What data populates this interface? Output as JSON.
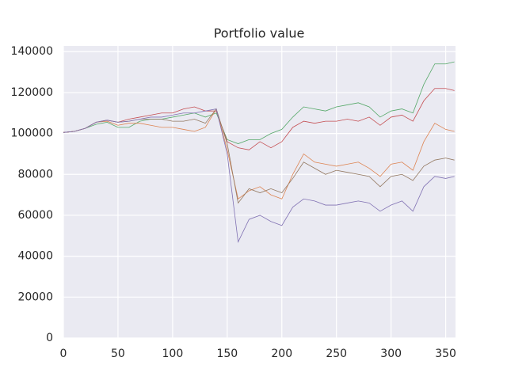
{
  "chart_data": {
    "type": "line",
    "title": "Portfolio value",
    "x": [
      0,
      10,
      20,
      30,
      40,
      50,
      60,
      70,
      80,
      90,
      100,
      110,
      120,
      130,
      140,
      150,
      160,
      170,
      180,
      190,
      200,
      210,
      220,
      230,
      240,
      250,
      260,
      270,
      280,
      290,
      300,
      310,
      320,
      330,
      340,
      350,
      358
    ],
    "xlim": [
      0,
      359
    ],
    "xticks": [
      0,
      50,
      100,
      150,
      200,
      250,
      300,
      350
    ],
    "ylim": [
      0,
      142800
    ],
    "yticks": [
      0,
      20000,
      40000,
      60000,
      80000,
      100000,
      120000,
      140000
    ],
    "grid": true,
    "series": [
      {
        "color": "#55a868",
        "values": [
          100500,
          101000,
          102500,
          104500,
          105500,
          103000,
          103000,
          106000,
          107000,
          107000,
          108000,
          109000,
          110000,
          108000,
          110000,
          97000,
          95000,
          97000,
          97000,
          100000,
          102000,
          108000,
          113000,
          112000,
          111000,
          113000,
          114000,
          115000,
          113000,
          108000,
          111000,
          112000,
          110000,
          124000,
          134000,
          134000,
          135000
        ]
      },
      {
        "color": "#c44e52",
        "values": [
          100500,
          101000,
          102500,
          105500,
          106500,
          105500,
          107000,
          108000,
          109000,
          110000,
          110000,
          112000,
          113000,
          111000,
          111000,
          96000,
          93000,
          92000,
          96000,
          93000,
          96000,
          103000,
          106000,
          105000,
          106000,
          106000,
          107000,
          106000,
          108000,
          104000,
          108000,
          109000,
          106000,
          116000,
          122000,
          122000,
          121000
        ]
      },
      {
        "color": "#dd8452",
        "values": [
          100500,
          101000,
          102500,
          105500,
          106000,
          104000,
          105000,
          105000,
          104000,
          103000,
          103000,
          102000,
          101000,
          103000,
          112000,
          92000,
          68000,
          72000,
          74000,
          70000,
          68000,
          80000,
          90000,
          86000,
          85000,
          84000,
          85000,
          86000,
          83000,
          79000,
          85000,
          86000,
          82000,
          96000,
          105000,
          102000,
          101000
        ]
      },
      {
        "color": "#937860",
        "values": [
          100500,
          101000,
          102500,
          105500,
          106500,
          105500,
          106000,
          107000,
          107000,
          107000,
          106000,
          106000,
          107000,
          105000,
          112000,
          95000,
          66000,
          73000,
          71000,
          73000,
          71000,
          78000,
          86000,
          83000,
          80000,
          82000,
          81000,
          80000,
          79000,
          74000,
          79000,
          80000,
          77000,
          84000,
          87000,
          88000,
          87000
        ]
      },
      {
        "color": "#8172b3",
        "values": [
          100500,
          101000,
          102500,
          105500,
          106500,
          105500,
          106000,
          107000,
          108000,
          108000,
          109000,
          110000,
          110000,
          111000,
          112000,
          90000,
          47000,
          58000,
          60000,
          57000,
          55000,
          64000,
          68000,
          67000,
          65000,
          65000,
          66000,
          67000,
          66000,
          62000,
          65000,
          67000,
          62000,
          74000,
          79000,
          78000,
          79000
        ]
      }
    ]
  }
}
